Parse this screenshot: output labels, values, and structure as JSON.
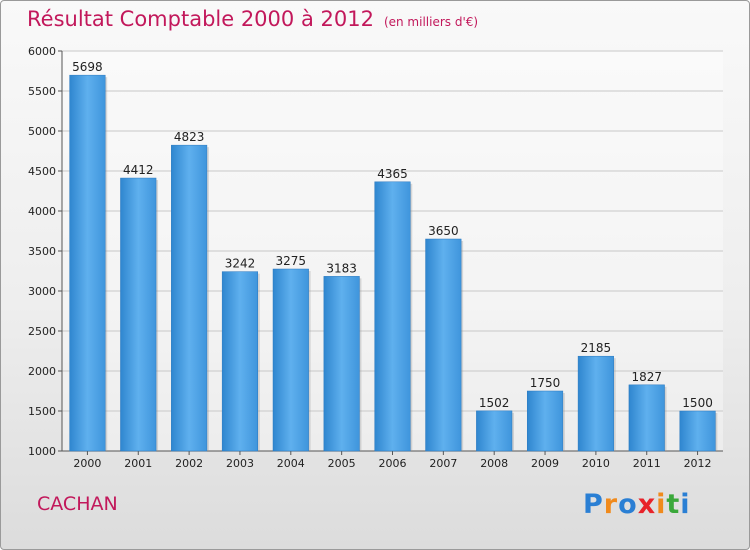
{
  "chart_data": {
    "type": "bar",
    "title": "Résultat Comptable 2000 à 2012",
    "subtitle": "(en milliers d'€)",
    "categories": [
      "2000",
      "2001",
      "2002",
      "2003",
      "2004",
      "2005",
      "2006",
      "2007",
      "2008",
      "2009",
      "2010",
      "2011",
      "2012"
    ],
    "values": [
      5698,
      4412,
      4823,
      3242,
      3275,
      3183,
      4365,
      3650,
      1502,
      1750,
      2185,
      1827,
      1500
    ],
    "ylim": [
      1000,
      6000
    ],
    "yticks": [
      1000,
      1500,
      2000,
      2500,
      3000,
      3500,
      4000,
      4500,
      5000,
      5500,
      6000
    ],
    "xlabel": "",
    "ylabel": "",
    "grid": true,
    "bar_color": "#4a9fe0"
  },
  "footer": {
    "city": "CACHAN",
    "logo_letters": [
      "P",
      "r",
      "o",
      "x",
      "i",
      "t",
      "i"
    ],
    "logo_colors": [
      "#2a7fd4",
      "#f08a1c",
      "#2a7fd4",
      "#e8232a",
      "#f08a1c",
      "#3aa83a",
      "#2a7fd4"
    ]
  }
}
